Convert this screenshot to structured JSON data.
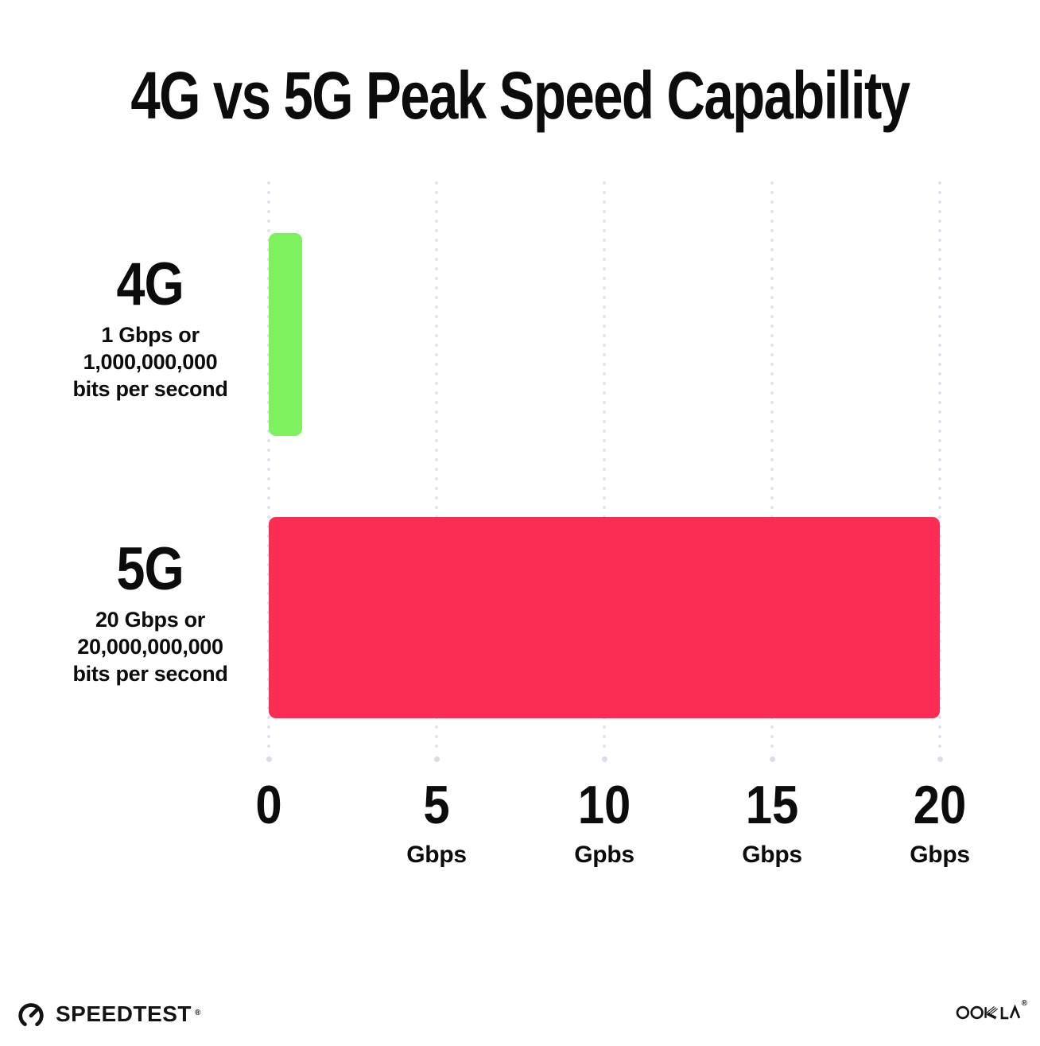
{
  "chart_data": {
    "type": "bar",
    "orientation": "horizontal",
    "title": "4G vs 5G Peak Speed Capability",
    "categories": [
      "4G",
      "5G"
    ],
    "values": [
      1,
      20
    ],
    "unit": "Gbps",
    "xlim": [
      0,
      20
    ],
    "bar_colors": [
      "#7df25e",
      "#fc2d55"
    ],
    "category_sublabels": [
      [
        "1 Gbps or",
        "1,000,000,000",
        "bits per second"
      ],
      [
        "20 Gbps or",
        "20,000,000,000",
        "bits per second"
      ]
    ],
    "x_ticks": [
      {
        "value": 0,
        "label": "0",
        "unit": ""
      },
      {
        "value": 5,
        "label": "5",
        "unit": "Gbps"
      },
      {
        "value": 10,
        "label": "10",
        "unit": "Gpbs"
      },
      {
        "value": 15,
        "label": "15",
        "unit": "Gbps"
      },
      {
        "value": 20,
        "label": "20",
        "unit": "Gbps"
      }
    ],
    "gridlines": "vertical-dotted",
    "legend": "none"
  },
  "footer": {
    "speedtest": {
      "text": "SPEEDTEST",
      "mark": "®"
    },
    "ookla": {
      "text": "OOKLA",
      "mark": "®"
    }
  },
  "colors": {
    "background": "#ffffff",
    "text": "#0c0c0c",
    "gridline": "#e2e2ee",
    "bar_4g_green": "#7df25e",
    "bar_5g_pink": "#fc2d55",
    "logo_ink": "#141414"
  }
}
